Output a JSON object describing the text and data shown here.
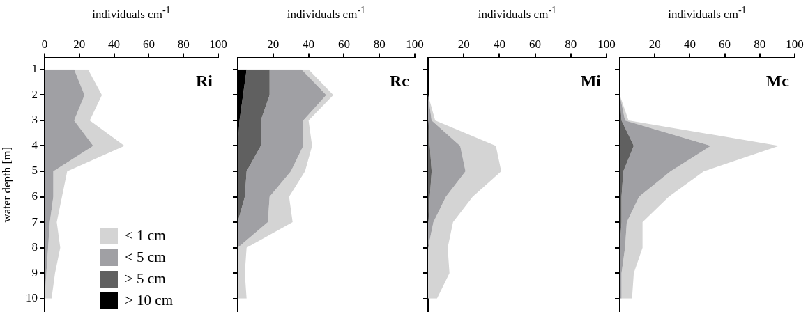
{
  "chart_data": [
    {
      "type": "area",
      "title": "Ri",
      "xlabel": "individuals cm$^{-1}$",
      "ylabel": "water depth [m]",
      "stacked": true,
      "orientation": "horizontal",
      "x": [
        1,
        2,
        3,
        4,
        5,
        6,
        7,
        8,
        9,
        10
      ],
      "series": [
        {
          "name": "> 10 cm",
          "color": "#000000",
          "values": [
            null,
            null,
            null,
            null,
            null,
            null,
            null,
            null,
            null,
            null
          ]
        },
        {
          "name": "> 5 cm",
          "color": "#606060",
          "values": [
            null,
            null,
            null,
            null,
            null,
            null,
            null,
            null,
            null,
            null
          ]
        },
        {
          "name": "< 5 cm",
          "color": "#a0a0a4",
          "values": [
            17,
            23,
            17,
            28,
            5,
            5,
            3,
            2,
            1,
            0
          ]
        },
        {
          "name": "< 1 cm",
          "color": "#d4d4d4",
          "values": [
            8,
            10,
            9,
            18,
            8,
            5,
            4,
            7,
            5,
            4
          ]
        }
      ],
      "xlim": [
        0,
        100
      ],
      "xticks": [
        0,
        20,
        40,
        60,
        80,
        100
      ],
      "ylim": [
        10.5,
        0.55
      ],
      "yticks": [
        1,
        2,
        3,
        4,
        5,
        6,
        7,
        8,
        9,
        10
      ],
      "grid": false,
      "marker": "none",
      "legend": "bottom left"
    },
    {
      "type": "area",
      "title": "Rc",
      "xlabel": "individuals cm$^{-1}$",
      "stacked": true,
      "orientation": "horizontal",
      "x": [
        1,
        2,
        3,
        4,
        5,
        6,
        7,
        8,
        9,
        10
      ],
      "series": [
        {
          "color": "#000000",
          "values": [
            5,
            3,
            1,
            0,
            0,
            0,
            0,
            0,
            0,
            0
          ]
        },
        {
          "color": "#606060",
          "values": [
            13,
            15,
            12,
            13,
            5,
            4,
            0,
            0,
            0,
            0
          ]
        },
        {
          "color": "#a0a0a4",
          "values": [
            18,
            32,
            24,
            24,
            25,
            14,
            17,
            0,
            0,
            0
          ]
        },
        {
          "color": "#d4d4d4",
          "values": [
            4,
            4,
            3,
            5,
            8,
            11,
            14,
            5,
            4,
            5
          ]
        }
      ],
      "xlim": [
        0,
        100
      ],
      "xticks": [
        20,
        40,
        60,
        80,
        100
      ],
      "ylim": [
        10.5,
        0.55
      ],
      "yticks": [
        1,
        2,
        3,
        4,
        5,
        6,
        7,
        8,
        9,
        10
      ],
      "tick_labels": "x",
      "grid": false,
      "marker": "none",
      "legend": false
    },
    {
      "type": "area",
      "title": "Mi",
      "xlabel": "individuals cm$^{-1}$",
      "stacked": true,
      "orientation": "horizontal",
      "x": [
        1,
        2,
        3,
        4,
        5,
        6,
        7,
        8,
        9,
        10
      ],
      "series": [
        {
          "color": "#000000",
          "values": [
            null,
            null,
            null,
            null,
            null,
            null,
            null,
            null,
            null,
            null
          ]
        },
        {
          "color": "#606060",
          "values": [
            0,
            0,
            0,
            1,
            2,
            1,
            0,
            0,
            0,
            0
          ]
        },
        {
          "color": "#a0a0a4",
          "values": [
            0,
            0,
            2,
            17,
            19,
            9,
            3,
            0,
            0,
            0
          ]
        },
        {
          "color": "#d4d4d4",
          "values": [
            0,
            0,
            2,
            20,
            20,
            15,
            11,
            11,
            12,
            5
          ]
        }
      ],
      "xlim": [
        0,
        100
      ],
      "xticks": [
        20,
        40,
        60,
        80,
        100
      ],
      "ylim": [
        10.5,
        0.55
      ],
      "yticks": [
        1,
        2,
        3,
        4,
        5,
        6,
        7,
        8,
        9,
        10
      ],
      "tick_labels": "x",
      "grid": false,
      "marker": "none",
      "legend": false
    },
    {
      "type": "area",
      "title": "Mc",
      "xlabel": "individuals cm$^{-1}$",
      "stacked": true,
      "orientation": "horizontal",
      "x": [
        1,
        2,
        3,
        4,
        5,
        6,
        7,
        8,
        9,
        10
      ],
      "series": [
        {
          "color": "#000000",
          "values": [
            null,
            null,
            null,
            null,
            null,
            null,
            null,
            null,
            null,
            null
          ]
        },
        {
          "color": "#606060",
          "values": [
            0,
            0,
            1,
            8,
            2,
            1,
            1,
            0,
            0,
            0
          ]
        },
        {
          "color": "#a0a0a4",
          "values": [
            0,
            0,
            2,
            44,
            27,
            10,
            3,
            3,
            1,
            1
          ]
        },
        {
          "color": "#d4d4d4",
          "values": [
            0,
            0,
            2,
            39,
            19,
            17,
            9,
            10,
            7,
            6
          ]
        }
      ],
      "xlim": [
        0,
        100
      ],
      "xticks": [
        20,
        40,
        60,
        80,
        100
      ],
      "ylim": [
        10.5,
        0.55
      ],
      "yticks": [
        1,
        2,
        3,
        4,
        5,
        6,
        7,
        8,
        9,
        10
      ],
      "tick_labels": "x",
      "grid": false,
      "marker": "none",
      "legend": false
    }
  ]
}
